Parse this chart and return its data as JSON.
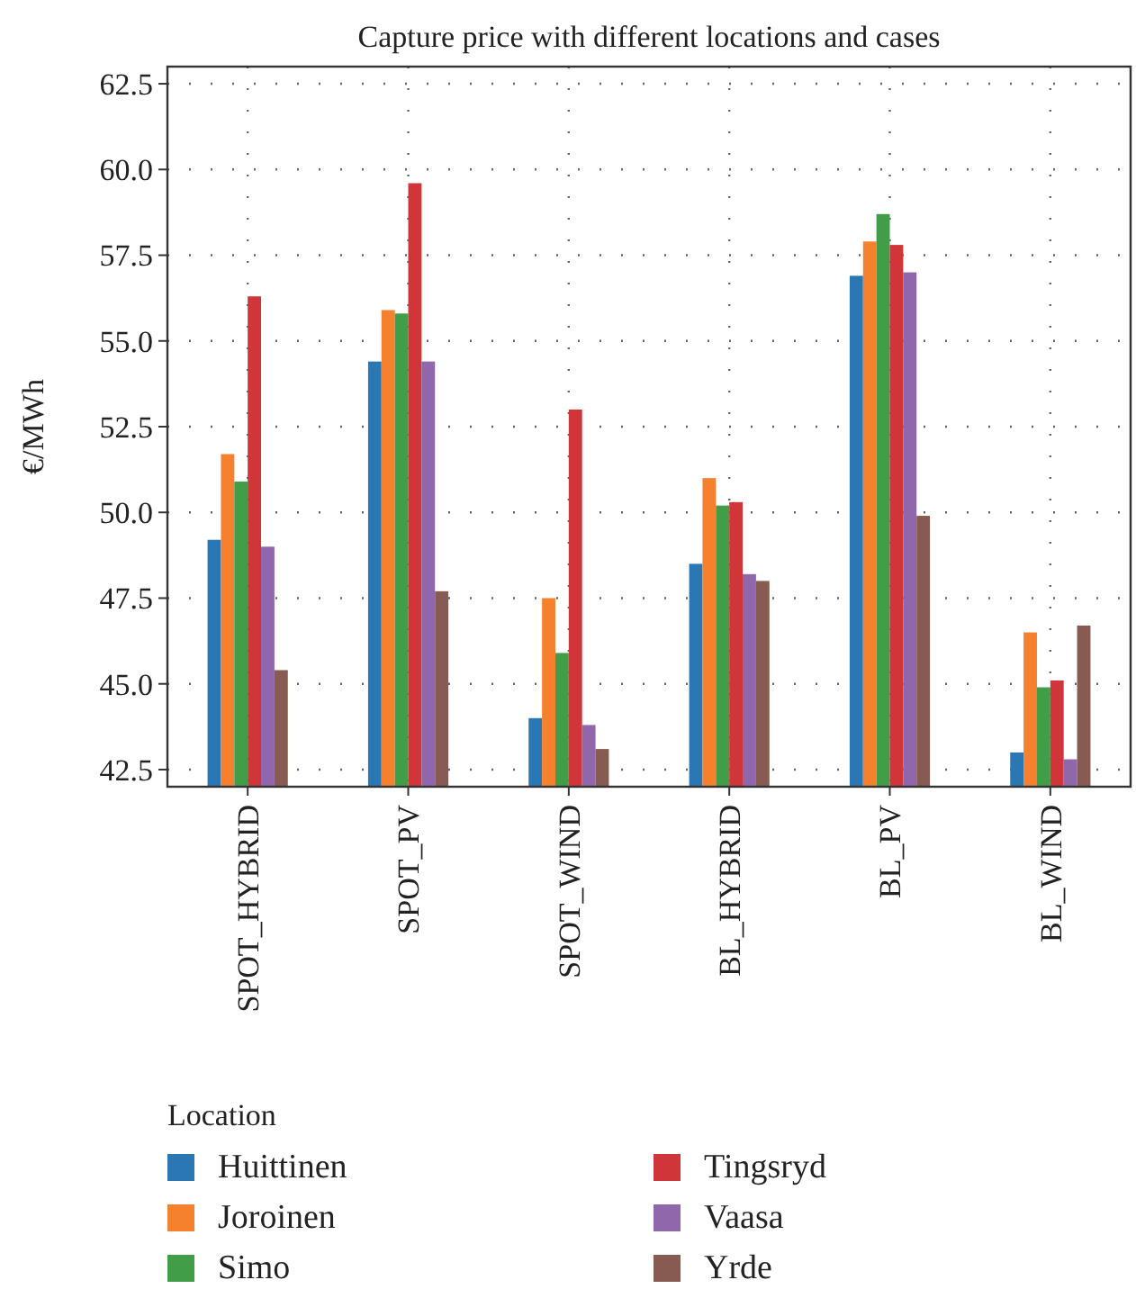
{
  "chart_data": {
    "type": "bar",
    "title": "Capture price with different locations and cases",
    "ylabel": "€/MWh",
    "legend_title": "Location",
    "categories": [
      "SPOT_HYBRID",
      "SPOT_PV",
      "SPOT_WIND",
      "BL_HYBRID",
      "BL_PV",
      "BL_WIND"
    ],
    "series": [
      {
        "name": "Huittinen",
        "color": "#2a77b4",
        "values": [
          49.2,
          54.4,
          44.0,
          48.5,
          56.9,
          43.0
        ]
      },
      {
        "name": "Joroinen",
        "color": "#f5812f",
        "values": [
          51.7,
          55.9,
          47.5,
          51.0,
          57.9,
          46.5
        ]
      },
      {
        "name": "Simo",
        "color": "#419d48",
        "values": [
          50.9,
          55.8,
          45.9,
          50.2,
          58.7,
          44.9
        ]
      },
      {
        "name": "Tingsryd",
        "color": "#d03539",
        "values": [
          56.3,
          59.6,
          53.0,
          50.3,
          57.8,
          45.1
        ]
      },
      {
        "name": "Vaasa",
        "color": "#9067ab",
        "values": [
          49.0,
          54.4,
          43.8,
          48.2,
          57.0,
          42.8
        ]
      },
      {
        "name": "Yrde",
        "color": "#885b52",
        "values": [
          45.4,
          47.7,
          43.1,
          48.0,
          49.9,
          46.7
        ]
      }
    ],
    "ylim": [
      42.0,
      63.0
    ],
    "yticks": [
      {
        "value": 42.5,
        "label": "42.5"
      },
      {
        "value": 45,
        "label": "45.0"
      },
      {
        "value": 47.5,
        "label": "47.5"
      },
      {
        "value": 50,
        "label": "50.0"
      },
      {
        "value": 52.5,
        "label": "52.5"
      },
      {
        "value": 55,
        "label": "55.0"
      },
      {
        "value": 57.5,
        "label": "57.5"
      },
      {
        "value": 60,
        "label": "60.0"
      },
      {
        "value": 62.5,
        "label": "62.5"
      }
    ],
    "grid": true,
    "legend": "bottom"
  }
}
